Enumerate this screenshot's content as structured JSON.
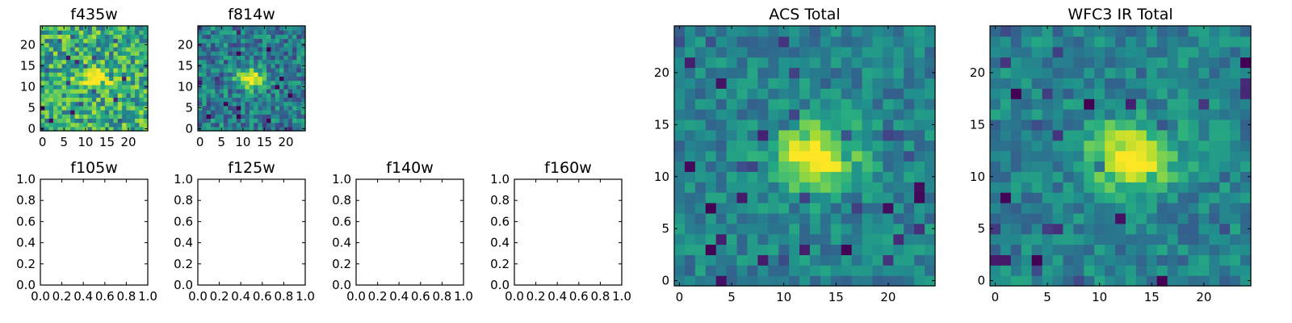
{
  "chart_data": [
    {
      "type": "heatmap",
      "title": "f435w",
      "xlim": [
        -0.5,
        24.5
      ],
      "ylim": [
        -0.5,
        24.5
      ],
      "xticks": [
        0,
        5,
        10,
        15,
        20
      ],
      "yticks": [
        0,
        5,
        10,
        15,
        20
      ],
      "xticklabels": [
        "0",
        "5",
        "10",
        "15",
        "20"
      ],
      "yticklabels": [
        "0",
        "5",
        "10",
        "15",
        "20"
      ],
      "grid_size": [
        25,
        25
      ],
      "colormap": "viridis",
      "feature": {
        "peak_center": [
          12,
          12
        ],
        "peak_radius": 2.5,
        "background": "noisy high"
      }
    },
    {
      "type": "heatmap",
      "title": "f814w",
      "xlim": [
        -0.5,
        24.5
      ],
      "ylim": [
        -0.5,
        24.5
      ],
      "xticks": [
        0,
        5,
        10,
        15,
        20
      ],
      "yticks": [
        0,
        5,
        10,
        15,
        20
      ],
      "xticklabels": [
        "0",
        "5",
        "10",
        "15",
        "20"
      ],
      "yticklabels": [
        "0",
        "5",
        "10",
        "15",
        "20"
      ],
      "grid_size": [
        25,
        25
      ],
      "colormap": "viridis",
      "feature": {
        "peak_center": [
          12,
          12
        ],
        "peak_radius": 2.5,
        "background": "noisy medium"
      }
    },
    {
      "type": "empty",
      "title": "f105w",
      "xlim": [
        0,
        1
      ],
      "ylim": [
        0,
        1
      ],
      "xticklabels": [
        "0.0",
        "0.2",
        "0.4",
        "0.6",
        "0.8",
        "1.0"
      ],
      "yticklabels": [
        "0.0",
        "0.2",
        "0.4",
        "0.6",
        "0.8",
        "1.0"
      ]
    },
    {
      "type": "empty",
      "title": "f125w",
      "xlim": [
        0,
        1
      ],
      "ylim": [
        0,
        1
      ],
      "xticklabels": [
        "0.0",
        "0.2",
        "0.4",
        "0.6",
        "0.8",
        "1.0"
      ],
      "yticklabels": [
        "0.0",
        "0.2",
        "0.4",
        "0.6",
        "0.8",
        "1.0"
      ]
    },
    {
      "type": "empty",
      "title": "f140w",
      "xlim": [
        0,
        1
      ],
      "ylim": [
        0,
        1
      ],
      "xticklabels": [
        "0.0",
        "0.2",
        "0.4",
        "0.6",
        "0.8",
        "1.0"
      ],
      "yticklabels": [
        "0.0",
        "0.2",
        "0.4",
        "0.6",
        "0.8",
        "1.0"
      ]
    },
    {
      "type": "empty",
      "title": "f160w",
      "xlim": [
        0,
        1
      ],
      "ylim": [
        0,
        1
      ],
      "xticklabels": [
        "0.0",
        "0.2",
        "0.4",
        "0.6",
        "0.8",
        "1.0"
      ],
      "yticklabels": [
        "0.0",
        "0.2",
        "0.4",
        "0.6",
        "0.8",
        "1.0"
      ]
    },
    {
      "type": "heatmap",
      "title": "ACS Total",
      "xlim": [
        -0.5,
        24.5
      ],
      "ylim": [
        -0.5,
        24.5
      ],
      "xticks": [
        0,
        5,
        10,
        15,
        20
      ],
      "yticks": [
        0,
        5,
        10,
        15,
        20
      ],
      "xticklabels": [
        "0",
        "5",
        "10",
        "15",
        "20"
      ],
      "yticklabels": [
        "0",
        "5",
        "10",
        "15",
        "20"
      ],
      "grid_size": [
        25,
        25
      ],
      "colormap": "viridis",
      "feature": {
        "peak_center": [
          13,
          12
        ],
        "peak_radius": 3.2,
        "background": "medium"
      }
    },
    {
      "type": "heatmap",
      "title": "WFC3 IR Total",
      "xlim": [
        -0.5,
        24.5
      ],
      "ylim": [
        -0.5,
        24.5
      ],
      "xticks": [
        0,
        5,
        10,
        15,
        20
      ],
      "yticks": [
        0,
        5,
        10,
        15,
        20
      ],
      "xticklabels": [
        "0",
        "5",
        "10",
        "15",
        "20"
      ],
      "yticklabels": [
        "0",
        "5",
        "10",
        "15",
        "20"
      ],
      "grid_size": [
        25,
        25
      ],
      "colormap": "viridis",
      "feature": {
        "peak_center": [
          13,
          12
        ],
        "peak_radius": 3.2,
        "background": "medium"
      }
    }
  ]
}
